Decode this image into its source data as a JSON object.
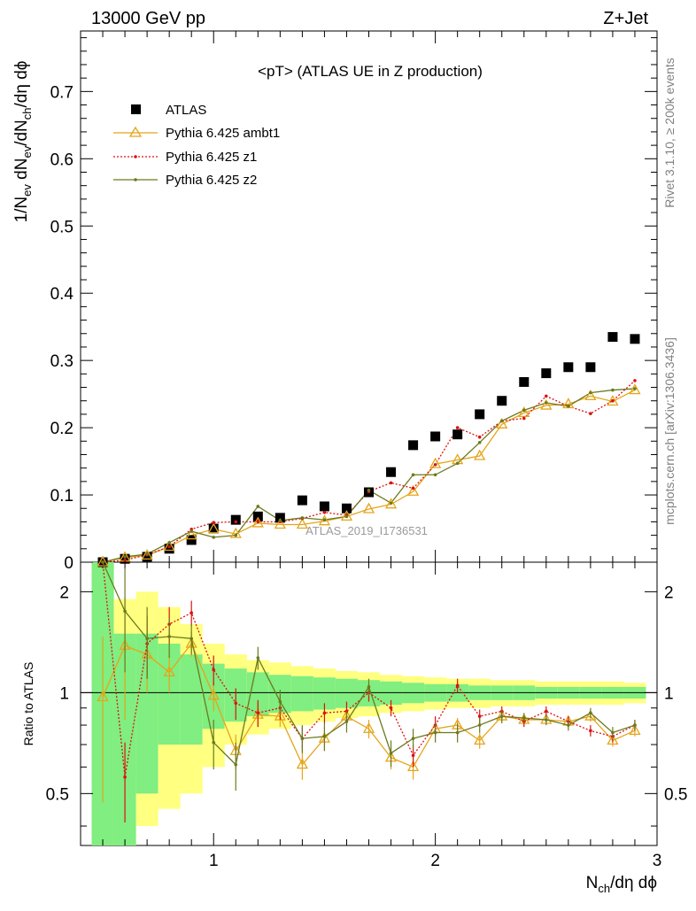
{
  "header": {
    "left": "13000 GeV pp",
    "right": "Z+Jet"
  },
  "side_labels": {
    "rivet": "Rivet 3.1.10, ≥ 200k events",
    "mcplots": "mcplots.cern.ch [arXiv:1306.3436]"
  },
  "watermark": "ATLAS_2019_I1736531",
  "chart_data": [
    {
      "type": "scatter",
      "title": "<pT> (ATLAS UE in Z production)",
      "ylabel": "1/N_ev dN_ev/dN_ch/dη dϕ",
      "xlim": [
        0.4,
        3.0
      ],
      "ylim": [
        0,
        0.79
      ],
      "yticks": [
        0,
        0.1,
        0.2,
        0.3,
        0.4,
        0.5,
        0.6,
        0.7
      ],
      "ytick_labels": [
        "0",
        "0.1",
        "0.2",
        "0.3",
        "0.4",
        "0.5",
        "0.6",
        "0.7"
      ],
      "legend_position": "top-left",
      "x": [
        0.5,
        0.6,
        0.7,
        0.8,
        0.9,
        1.0,
        1.1,
        1.2,
        1.3,
        1.4,
        1.5,
        1.6,
        1.7,
        1.8,
        1.9,
        2.0,
        2.1,
        2.2,
        2.3,
        2.4,
        2.5,
        2.6,
        2.7,
        2.8,
        2.9
      ],
      "series": [
        {
          "name": "ATLAS",
          "color": "#000000",
          "marker": "square",
          "values": [
            0.0,
            0.005,
            0.008,
            0.02,
            0.033,
            0.05,
            0.063,
            0.068,
            0.066,
            0.092,
            0.083,
            0.08,
            0.104,
            0.134,
            0.174,
            0.187,
            0.19,
            0.22,
            0.24,
            0.268,
            0.281,
            0.29,
            0.29,
            0.335,
            0.332
          ]
        },
        {
          "name": "Pythia 6.425 ambt1",
          "color": "#e5a51a",
          "marker": "triangle",
          "values": [
            0.0,
            0.007,
            0.01,
            0.023,
            0.04,
            0.049,
            0.042,
            0.058,
            0.056,
            0.056,
            0.061,
            0.068,
            0.079,
            0.086,
            0.105,
            0.146,
            0.152,
            0.158,
            0.205,
            0.222,
            0.233,
            0.235,
            0.247,
            0.239,
            0.256
          ]
        },
        {
          "name": "Pythia 6.425 z1",
          "color": "#dd1111",
          "marker": "dot",
          "values": [
            0.0,
            0.003,
            0.011,
            0.023,
            0.049,
            0.059,
            0.06,
            0.06,
            0.06,
            0.065,
            0.074,
            0.07,
            0.105,
            0.118,
            0.11,
            0.145,
            0.2,
            0.186,
            0.21,
            0.214,
            0.247,
            0.232,
            0.221,
            0.24,
            0.27
          ]
        },
        {
          "name": "Pythia 6.425 z2",
          "color": "#6b7a1f",
          "marker": "dot",
          "values": [
            0.0,
            0.008,
            0.012,
            0.029,
            0.046,
            0.037,
            0.04,
            0.083,
            0.062,
            0.066,
            0.063,
            0.068,
            0.107,
            0.088,
            0.13,
            0.13,
            0.147,
            0.178,
            0.21,
            0.226,
            0.237,
            0.232,
            0.252,
            0.256,
            0.258
          ]
        }
      ]
    },
    {
      "type": "line",
      "ylabel": "Ratio to ATLAS",
      "xlabel": "N_ch/dη dϕ",
      "xlim": [
        0.4,
        3.0
      ],
      "ylim": [
        0.35,
        2.45
      ],
      "ylog": true,
      "yticks": [
        0.5,
        1,
        2
      ],
      "ytick_labels": [
        "0.5",
        "1",
        "2"
      ],
      "xticks": [
        1,
        2,
        3
      ],
      "xtick_labels": [
        "1",
        "2",
        "3"
      ],
      "x": [
        0.5,
        0.6,
        0.7,
        0.8,
        0.9,
        1.0,
        1.1,
        1.2,
        1.3,
        1.4,
        1.5,
        1.6,
        1.7,
        1.8,
        1.9,
        2.0,
        2.1,
        2.2,
        2.3,
        2.4,
        2.5,
        2.6,
        2.7,
        2.8,
        2.9
      ],
      "band_green": [
        [
          0.3,
          2.5
        ],
        [
          0.3,
          1.5
        ],
        [
          0.5,
          1.5
        ],
        [
          0.7,
          1.4
        ],
        [
          0.7,
          1.3
        ],
        [
          0.78,
          1.22
        ],
        [
          0.82,
          1.18
        ],
        [
          0.85,
          1.15
        ],
        [
          0.87,
          1.13
        ],
        [
          0.88,
          1.12
        ],
        [
          0.89,
          1.11
        ],
        [
          0.9,
          1.1
        ],
        [
          0.91,
          1.09
        ],
        [
          0.92,
          1.08
        ],
        [
          0.93,
          1.07
        ],
        [
          0.94,
          1.06
        ],
        [
          0.94,
          1.06
        ],
        [
          0.95,
          1.05
        ],
        [
          0.95,
          1.05
        ],
        [
          0.95,
          1.05
        ],
        [
          0.96,
          1.04
        ],
        [
          0.96,
          1.04
        ],
        [
          0.96,
          1.04
        ],
        [
          0.96,
          1.04
        ],
        [
          0.96,
          1.04
        ]
      ],
      "band_yellow": [
        [
          0.3,
          2.5
        ],
        [
          0.3,
          1.9
        ],
        [
          0.4,
          2.0
        ],
        [
          0.45,
          1.8
        ],
        [
          0.5,
          1.6
        ],
        [
          0.6,
          1.4
        ],
        [
          0.7,
          1.3
        ],
        [
          0.75,
          1.25
        ],
        [
          0.78,
          1.23
        ],
        [
          0.8,
          1.2
        ],
        [
          0.82,
          1.18
        ],
        [
          0.84,
          1.16
        ],
        [
          0.85,
          1.15
        ],
        [
          0.87,
          1.13
        ],
        [
          0.88,
          1.12
        ],
        [
          0.89,
          1.11
        ],
        [
          0.9,
          1.1
        ],
        [
          0.9,
          1.1
        ],
        [
          0.91,
          1.09
        ],
        [
          0.91,
          1.09
        ],
        [
          0.92,
          1.08
        ],
        [
          0.92,
          1.08
        ],
        [
          0.92,
          1.08
        ],
        [
          0.92,
          1.08
        ],
        [
          0.93,
          1.07
        ]
      ],
      "series": [
        {
          "name": "Pythia 6.425 ambt1",
          "color": "#e5a51a",
          "values": [
            0.97,
            1.38,
            1.3,
            1.15,
            1.4,
            0.98,
            0.67,
            0.86,
            0.85,
            0.61,
            0.73,
            0.85,
            0.78,
            0.64,
            0.6,
            0.78,
            0.8,
            0.72,
            0.85,
            0.83,
            0.83,
            0.82,
            0.85,
            0.72,
            0.77
          ],
          "errors": [
            0.5,
            0.55,
            0.3,
            0.15,
            0.12,
            0.1,
            0.08,
            0.07,
            0.06,
            0.06,
            0.06,
            0.05,
            0.05,
            0.05,
            0.05,
            0.04,
            0.04,
            0.04,
            0.03,
            0.03,
            0.03,
            0.03,
            0.03,
            0.03,
            0.03
          ]
        },
        {
          "name": "Pythia 6.425 z1",
          "color": "#dd1111",
          "values": [
            2.6,
            0.56,
            1.4,
            1.6,
            1.73,
            1.17,
            0.93,
            0.87,
            0.9,
            0.73,
            0.87,
            0.88,
            1.0,
            0.9,
            0.65,
            0.8,
            1.05,
            0.85,
            0.88,
            0.82,
            0.88,
            0.82,
            0.77,
            0.74,
            0.8
          ],
          "errors": [
            0.0,
            0.15,
            0.3,
            0.2,
            0.15,
            0.12,
            0.1,
            0.08,
            0.07,
            0.06,
            0.06,
            0.06,
            0.06,
            0.05,
            0.05,
            0.05,
            0.05,
            0.04,
            0.03,
            0.03,
            0.03,
            0.03,
            0.03,
            0.03,
            0.03
          ]
        },
        {
          "name": "Pythia 6.425 z2",
          "color": "#6b7a1f",
          "values": [
            2.6,
            1.75,
            1.45,
            1.47,
            1.45,
            0.71,
            0.61,
            1.27,
            0.94,
            0.73,
            0.74,
            0.82,
            1.04,
            0.66,
            0.73,
            0.76,
            0.76,
            0.8,
            0.85,
            0.84,
            0.83,
            0.8,
            0.87,
            0.76,
            0.8
          ],
          "errors": [
            0.0,
            0.6,
            0.35,
            0.2,
            0.15,
            0.12,
            0.1,
            0.1,
            0.08,
            0.07,
            0.07,
            0.06,
            0.06,
            0.06,
            0.05,
            0.05,
            0.05,
            0.04,
            0.04,
            0.03,
            0.03,
            0.03,
            0.03,
            0.03,
            0.03
          ]
        }
      ]
    }
  ]
}
